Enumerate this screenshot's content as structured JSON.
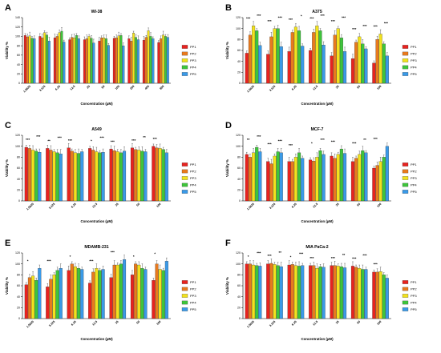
{
  "figure": {
    "colors": {
      "PP1": "#e8231f",
      "PP2": "#e87a1e",
      "PP3": "#f2e21d",
      "PP4": "#3ec43b",
      "PP5": "#3a9ae8"
    }
  },
  "chart_data": [
    {
      "panel": "A",
      "title": "WI-38",
      "type": "bar",
      "ylabel": "Viability %",
      "xlabel": "Concentration (µM)",
      "ylim": [
        0,
        140
      ],
      "yticks": [
        "0",
        "20",
        "40",
        "60",
        "80",
        "100",
        "120",
        "140"
      ],
      "categories": [
        "1.5625",
        "3.125",
        "6.25",
        "12.5",
        "25",
        "50",
        "100",
        "200",
        "400",
        "800"
      ],
      "series": [
        {
          "name": "PP1",
          "values": [
            102,
            100,
            97,
            93,
            93,
            90,
            96,
            95,
            92,
            87
          ]
        },
        {
          "name": "PP2",
          "values": [
            99,
            97,
            100,
            98,
            95,
            97,
            97,
            90,
            98,
            95
          ]
        },
        {
          "name": "PP3",
          "values": [
            101,
            108,
            108,
            97,
            100,
            97,
            101,
            107,
            112,
            103
          ]
        },
        {
          "name": "PP4",
          "values": [
            96,
            103,
            111,
            102,
            96,
            95,
            102,
            98,
            100,
            100
          ]
        },
        {
          "name": "PP5",
          "values": [
            95,
            90,
            88,
            95,
            86,
            81,
            80,
            93,
            95,
            98
          ]
        }
      ],
      "significance": []
    },
    {
      "panel": "B",
      "title": "A375",
      "type": "bar",
      "ylabel": "Viability %",
      "xlabel": "Concentration (µM)",
      "ylim": [
        0,
        120
      ],
      "yticks": [
        "0",
        "20",
        "40",
        "60",
        "80",
        "100",
        "120"
      ],
      "categories": [
        "1.5625",
        "3.125",
        "6.25",
        "12.5",
        "25",
        "50",
        "100"
      ],
      "series": [
        {
          "name": "PP1",
          "values": [
            55,
            53,
            58,
            60,
            50,
            45,
            37
          ]
        },
        {
          "name": "PP2",
          "values": [
            88,
            85,
            93,
            93,
            88,
            75,
            80
          ]
        },
        {
          "name": "PP3",
          "values": [
            105,
            100,
            103,
            105,
            100,
            85,
            90
          ]
        },
        {
          "name": "PP4",
          "values": [
            96,
            100,
            96,
            96,
            83,
            72,
            72
          ]
        },
        {
          "name": "PP5",
          "values": [
            69,
            67,
            68,
            70,
            58,
            63,
            50
          ]
        }
      ],
      "significance": [
        "***",
        "***",
        "***",
        "***",
        "***",
        "*",
        "***",
        "***",
        "***",
        "***",
        "***",
        "***",
        "***",
        "***"
      ]
    },
    {
      "panel": "C",
      "title": "A549",
      "type": "bar",
      "ylabel": "Viability %",
      "xlabel": "Concentration (µM)",
      "ylim": [
        0,
        120
      ],
      "yticks": [
        "0",
        "20",
        "40",
        "60",
        "80",
        "100",
        "120"
      ],
      "categories": [
        "1.5625",
        "3.125",
        "6.25",
        "12.5",
        "25",
        "50",
        "100"
      ],
      "series": [
        {
          "name": "PP1",
          "values": [
            98,
            96,
            97,
            96,
            95,
            97,
            100
          ]
        },
        {
          "name": "PP2",
          "values": [
            96,
            93,
            91,
            93,
            92,
            94,
            97
          ]
        },
        {
          "name": "PP3",
          "values": [
            93,
            90,
            88,
            90,
            90,
            93,
            96
          ]
        },
        {
          "name": "PP4",
          "values": [
            91,
            88,
            87,
            88,
            88,
            91,
            94
          ]
        },
        {
          "name": "PP5",
          "values": [
            89,
            86,
            90,
            89,
            91,
            90,
            88
          ]
        }
      ],
      "significance": [
        "***",
        "***",
        "**",
        "***",
        "***",
        "*",
        "***",
        "***",
        "***",
        "**",
        "***"
      ]
    },
    {
      "panel": "D",
      "title": "MCF-7",
      "type": "bar",
      "ylabel": "Viability %",
      "xlabel": "Concentration (µM)",
      "ylim": [
        0,
        120
      ],
      "yticks": [
        "0",
        "20",
        "40",
        "60",
        "80",
        "100",
        "120"
      ],
      "categories": [
        "1.5625",
        "3.125",
        "6.25",
        "12.5",
        "25",
        "50",
        "100"
      ],
      "series": [
        {
          "name": "PP1",
          "values": [
            85,
            72,
            72,
            75,
            82,
            72,
            60
          ]
        },
        {
          "name": "PP2",
          "values": [
            80,
            68,
            72,
            73,
            78,
            78,
            65
          ]
        },
        {
          "name": "PP3",
          "values": [
            88,
            82,
            80,
            80,
            85,
            85,
            72
          ]
        },
        {
          "name": "PP4",
          "values": [
            98,
            90,
            88,
            92,
            95,
            92,
            80
          ]
        },
        {
          "name": "PP5",
          "values": [
            90,
            88,
            78,
            85,
            87,
            88,
            100
          ]
        }
      ],
      "significance": [
        "**",
        "***",
        "***",
        "***",
        "***",
        "*",
        "***",
        "***",
        "***",
        "**",
        "***"
      ]
    },
    {
      "panel": "E",
      "title": "MDAMB-231",
      "type": "bar",
      "ylabel": "Viability %",
      "xlabel": "Concentration (µM)",
      "ylim": [
        0,
        120
      ],
      "yticks": [
        "0",
        "20",
        "40",
        "60",
        "80",
        "100",
        "120"
      ],
      "categories": [
        "1.5625",
        "3.125",
        "6.25",
        "12.5",
        "25",
        "50",
        "100"
      ],
      "series": [
        {
          "name": "PP1",
          "values": [
            62,
            58,
            88,
            65,
            75,
            80,
            70
          ]
        },
        {
          "name": "PP2",
          "values": [
            75,
            72,
            100,
            85,
            98,
            100,
            100
          ]
        },
        {
          "name": "PP3",
          "values": [
            78,
            80,
            95,
            92,
            98,
            98,
            90
          ]
        },
        {
          "name": "PP4",
          "values": [
            70,
            88,
            92,
            88,
            100,
            92,
            88
          ]
        },
        {
          "name": "PP5",
          "values": [
            92,
            92,
            90,
            90,
            108,
            90,
            105
          ]
        }
      ],
      "significance": [
        "*",
        "***",
        "*",
        "***",
        "***",
        "*",
        "*"
      ]
    },
    {
      "panel": "F",
      "title": "MIA PaCa-2",
      "type": "bar",
      "ylabel": "Viability %",
      "xlabel": "Concentration (µM)",
      "ylim": [
        0,
        120
      ],
      "yticks": [
        "0",
        "20",
        "40",
        "60",
        "80",
        "100",
        "120"
      ],
      "categories": [
        "1.5625",
        "3.125",
        "6.25",
        "12.5",
        "25",
        "50",
        "100"
      ],
      "series": [
        {
          "name": "PP1",
          "values": [
            100,
            100,
            98,
            97,
            97,
            96,
            85
          ]
        },
        {
          "name": "PP2",
          "values": [
            100,
            101,
            99,
            97,
            97,
            94,
            85
          ]
        },
        {
          "name": "PP3",
          "values": [
            98,
            99,
            97,
            92,
            96,
            92,
            86
          ]
        },
        {
          "name": "PP4",
          "values": [
            97,
            97,
            96,
            95,
            95,
            90,
            80
          ]
        },
        {
          "name": "PP5",
          "values": [
            96,
            95,
            97,
            94,
            93,
            90,
            74
          ]
        }
      ],
      "significance": [
        "*",
        "***",
        "***",
        "**",
        "*",
        "***",
        "***",
        "***",
        "**",
        "***",
        "***",
        "***"
      ]
    }
  ]
}
